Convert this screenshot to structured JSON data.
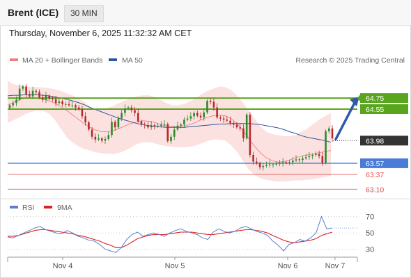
{
  "instrument": "Brent (ICE)",
  "timeframe": "30 MIN",
  "timestamp": "Thursday, November 6, 2025 11:32:32 AM CET",
  "copyright": "Research © 2025 Trading Central",
  "colors": {
    "resistance": "#5aa51e",
    "support": "#4a7bd6",
    "minor_level": "#e05050",
    "ma20_bands": "#f08080",
    "ma50": "#2f5597",
    "candle_up": "#2b8a2b",
    "candle_down": "#b52a2a",
    "rsi": "#5a7fd0",
    "rsi_ma": "#dd2222",
    "arrow": "#2f5aa8",
    "current_price_box": "#333333"
  },
  "chart_data": [
    {
      "type": "candlestick",
      "title": "Brent (ICE) 30 MIN",
      "legend": [
        "MA 20 + Bollinger Bands",
        "MA 50"
      ],
      "legend_position": "top-left",
      "x_ticks": [
        "Nov 4",
        "Nov 5",
        "Nov 6",
        "Nov 7"
      ],
      "ylim": [
        62.94,
        65.33
      ],
      "levels": [
        {
          "label": "64.75",
          "value": 64.75,
          "kind": "resistance"
        },
        {
          "label": "64.55",
          "value": 64.55,
          "kind": "resistance"
        },
        {
          "label": "63.98",
          "value": 63.98,
          "kind": "current"
        },
        {
          "label": "63.57",
          "value": 63.57,
          "kind": "support"
        },
        {
          "label": "63.37",
          "value": 63.37,
          "kind": "minor"
        },
        {
          "label": "63.10",
          "value": 63.1,
          "kind": "minor"
        }
      ],
      "close_series": [
        64.62,
        64.66,
        64.72,
        64.92,
        64.96,
        64.82,
        64.78,
        64.88,
        64.86,
        64.76,
        64.72,
        64.79,
        64.74,
        64.73,
        64.66,
        64.69,
        64.64,
        64.64,
        64.62,
        64.62,
        64.58,
        64.55,
        64.42,
        64.31,
        64.18,
        64.05,
        64.0,
        64.02,
        63.98,
        64.01,
        64.08,
        64.32,
        64.22,
        64.38,
        64.48,
        64.56,
        64.58,
        64.53,
        64.48,
        64.33,
        64.27,
        64.26,
        64.22,
        64.26,
        64.24,
        64.25,
        64.27,
        64.28,
        63.97,
        64.05,
        64.18,
        64.25,
        64.27,
        64.36,
        64.38,
        64.42,
        64.48,
        64.43,
        64.4,
        64.49,
        64.7,
        64.68,
        64.58,
        64.4,
        64.38,
        64.36,
        64.34,
        64.3,
        64.27,
        64.22,
        64.2,
        64.02,
        64.45,
        63.72,
        63.6,
        63.57,
        63.5,
        63.52,
        63.54,
        63.55,
        63.55,
        63.56,
        63.57,
        63.59,
        63.58,
        63.59,
        63.62,
        63.64,
        63.63,
        63.66,
        63.68,
        63.7,
        63.72,
        63.74,
        63.7,
        63.58,
        64.15,
        64.2,
        64.02
      ],
      "ma50": [
        64.79,
        64.8,
        64.8,
        64.81,
        64.81,
        64.81,
        64.8,
        64.79,
        64.77,
        64.75,
        64.73,
        64.7,
        64.67,
        64.63,
        64.58,
        64.54,
        64.5,
        64.46,
        64.42,
        64.38,
        64.35,
        64.32,
        64.29,
        64.27,
        64.25,
        64.24,
        64.23,
        64.22,
        64.22,
        64.22,
        64.22,
        64.23,
        64.24,
        64.25,
        64.26,
        64.27,
        64.28,
        64.28,
        64.29,
        64.29,
        64.29,
        64.29,
        64.28,
        64.27,
        64.25,
        64.23,
        64.21,
        64.18,
        64.14,
        64.11,
        64.07,
        64.04,
        64.02,
        64.0,
        63.98,
        63.95
      ],
      "ma20": [
        64.62,
        64.67,
        64.72,
        64.75,
        64.76,
        64.75,
        64.73,
        64.7,
        64.66,
        64.6,
        64.53,
        64.45,
        64.37,
        64.29,
        64.22,
        64.17,
        64.14,
        64.14,
        64.16,
        64.2,
        64.25,
        64.29,
        64.32,
        64.34,
        64.33,
        64.31,
        64.27,
        64.25,
        64.24,
        64.24,
        64.25,
        64.27,
        64.31,
        64.36,
        64.4,
        64.43,
        64.44,
        64.43,
        64.38,
        64.29,
        64.17,
        64.02,
        63.88,
        63.76,
        63.67,
        63.62,
        63.59,
        63.6,
        63.63,
        63.67,
        63.7,
        63.72,
        63.74,
        63.76,
        63.78,
        63.8
      ],
      "bb_upper": [
        65.06,
        65.0,
        64.98,
        64.96,
        64.95,
        64.95,
        64.94,
        64.93,
        64.91,
        64.88,
        64.84,
        64.8,
        64.75,
        64.68,
        64.6,
        64.55,
        64.55,
        64.57,
        64.61,
        64.66,
        64.71,
        64.75,
        64.78,
        64.8,
        64.8,
        64.77,
        64.72,
        64.66,
        64.62,
        64.62,
        64.64,
        64.69,
        64.75,
        64.82,
        64.88,
        64.92,
        64.96,
        64.95,
        64.9,
        64.8,
        64.67,
        64.53,
        64.38,
        64.24,
        64.14,
        64.1,
        64.08,
        64.06,
        64.06,
        64.08,
        64.14,
        64.2,
        64.28,
        64.36,
        64.42,
        64.48
      ],
      "bb_lower": [
        64.3,
        64.35,
        64.4,
        64.46,
        64.5,
        64.52,
        64.52,
        64.47,
        64.36,
        64.2,
        64.05,
        63.95,
        63.88,
        63.83,
        63.8,
        63.77,
        63.75,
        63.74,
        63.74,
        63.76,
        63.8,
        63.86,
        63.92,
        63.95,
        63.95,
        63.93,
        63.9,
        63.88,
        63.87,
        63.86,
        63.86,
        63.87,
        63.89,
        63.93,
        63.97,
        64.0,
        64.0,
        63.98,
        63.9,
        63.78,
        63.62,
        63.46,
        63.36,
        63.3,
        63.27,
        63.25,
        63.24,
        63.24,
        63.25,
        63.26,
        63.26,
        63.27,
        63.28,
        63.3,
        63.32,
        63.34
      ]
    },
    {
      "type": "line",
      "title": "RSI",
      "legend": [
        "RSI",
        "9MA"
      ],
      "legend_position": "top-left",
      "y_ticks": [
        "70",
        "50",
        "30"
      ],
      "ylim": [
        22,
        80
      ],
      "rsi": [
        45,
        44,
        47,
        50,
        53,
        56,
        58,
        54,
        52,
        50,
        49,
        53,
        50,
        46,
        44,
        41,
        40,
        36,
        30,
        28,
        26,
        32,
        42,
        48,
        51,
        46,
        48,
        50,
        48,
        46,
        50,
        53,
        55,
        52,
        50,
        48,
        44,
        42,
        51,
        55,
        52,
        50,
        52,
        56,
        58,
        55,
        52,
        50,
        47,
        40,
        35,
        28,
        36,
        38,
        42,
        40,
        44,
        50,
        70,
        55,
        56
      ],
      "rsi_ma": [
        46,
        46,
        47,
        49,
        51,
        53,
        54,
        54,
        53,
        52,
        51,
        50,
        49,
        47,
        46,
        44,
        42,
        40,
        37,
        35,
        32,
        32,
        35,
        39,
        43,
        45,
        47,
        48,
        48,
        48,
        49,
        50,
        51,
        51,
        51,
        50,
        49,
        48,
        48,
        49,
        50,
        51,
        52,
        53,
        54,
        54,
        53,
        52,
        50,
        47,
        44,
        41,
        39,
        38,
        39,
        40,
        41,
        43,
        47,
        49,
        51
      ]
    }
  ]
}
